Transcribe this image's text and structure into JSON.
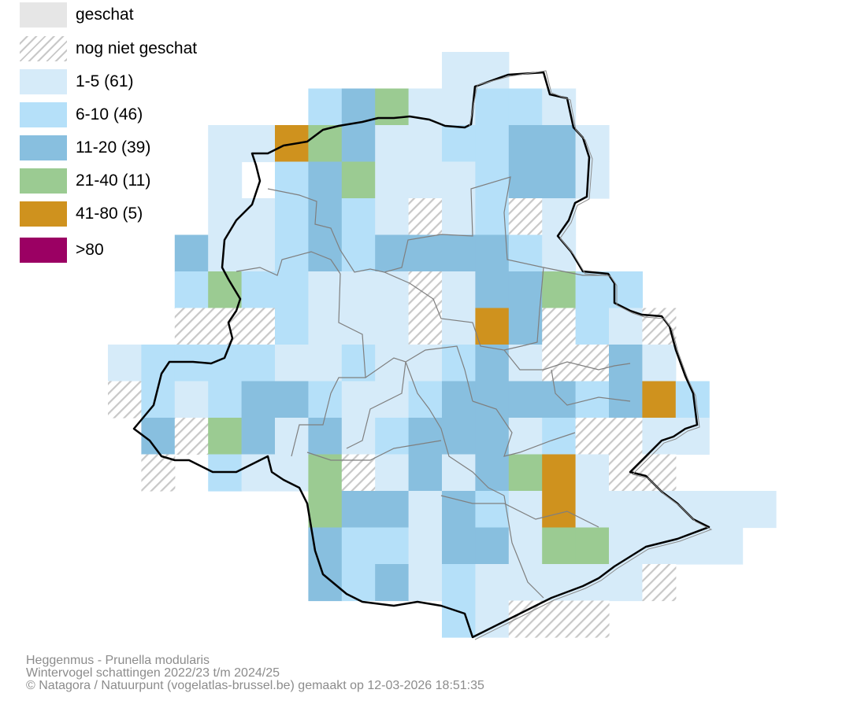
{
  "legend": {
    "items": [
      {
        "label": "geschat",
        "style": "solid",
        "color": "#e6e6e6"
      },
      {
        "label": "nog niet geschat",
        "style": "hatched",
        "color": "#c8c8c8"
      },
      {
        "label": "1-5 (61)",
        "style": "solid",
        "color": "#d6ebf9"
      },
      {
        "label": "6-10 (46)",
        "style": "solid",
        "color": "#b5e0f9"
      },
      {
        "label": "11-20 (39)",
        "style": "solid",
        "color": "#88bfdf"
      },
      {
        "label": "21-40 (11)",
        "style": "solid",
        "color": "#9bcb92"
      },
      {
        "label": "41-80 (5)",
        "style": "solid",
        "color": "#cf921e"
      },
      {
        "label": ">80",
        "style": "solid",
        "color": "#9b0063"
      }
    ]
  },
  "map": {
    "class_colors": {
      "1": "#d6ebf9",
      "2": "#b5e0f9",
      "3": "#88bfdf",
      "4": "#9bcb92",
      "5": "#cf921e",
      "6": "#9b0063"
    },
    "hatch_color": "#c8c8c8",
    "grid_rows": [
      "          LL          ",
      "      MHGLLMML        ",
      "   LLOGHLLMMHHL       ",
      "   L MHGLLLMHHL       ",
      "   LLMHMLXLMXL        ",
      "  HLLMHMHHHHML        ",
      "  MGMMLLLXLHHGMM      ",
      "  XXXMLLLXLOHXMLX     ",
      "LMMMMLLMLLMHLXXHL     ",
      "XMLMHHMLLMHHHHMHOM    ",
      " HXGHLHLMHHHLMXXLL    ",
      " X MLLGXLHLHGOLXX     ",
      "      GHHLHMLOLLLLLL  ",
      "      HMMLHHLGGLLLL   ",
      "      HMHLMLLLLLX     ",
      "          MLXXX       "
    ]
  },
  "footer": {
    "line1": "Heggenmus - Prunella modularis",
    "line2": "Wintervogel schattingen 2022/23 t/m 2024/25",
    "line3": "© Natagora / Natuurpunt (vogelatlas-brussel.be) gemaakt op 12-03-2026 18:51:35"
  }
}
